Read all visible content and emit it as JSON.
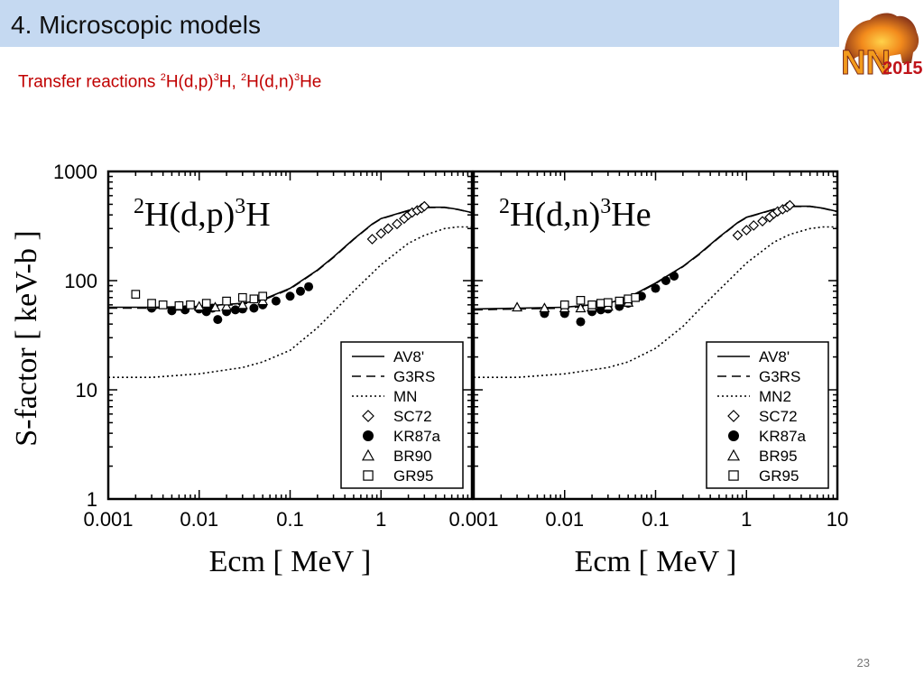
{
  "slide": {
    "title": "4. Microscopic models",
    "subtitle_text": "Transfer reactions",
    "subtitle_parts": [
      "2",
      "H(d,p)",
      "3",
      "H, ",
      "2",
      "H(d,n)",
      "3",
      "He"
    ],
    "page_number": "23"
  },
  "logo": {
    "text_nn": "NN",
    "text_year": "2015"
  },
  "colors": {
    "title_bar": "#c5d9f1",
    "subtitle": "#c00000"
  },
  "chart_data": [
    {
      "type": "line",
      "panel_title": {
        "pre": "2",
        "main": "H(d,p)",
        "sup": "3",
        "post": "H"
      },
      "xlabel": "Ecm [ MeV ]",
      "ylabel": "S-factor [ keV-b ]",
      "xscale": "log",
      "yscale": "log",
      "xlim": [
        0.001,
        10
      ],
      "ylim": [
        1,
        1000
      ],
      "xtick_labels": [
        "0.001",
        "0.01",
        "0.1",
        "1"
      ],
      "ytick_labels": [
        "1",
        "10",
        "100",
        "1000"
      ],
      "legend_placement": "lower-right",
      "series": [
        {
          "name": "AV8'",
          "style": "solid",
          "x": [
            0.001,
            0.003,
            0.01,
            0.03,
            0.05,
            0.1,
            0.2,
            0.3,
            0.5,
            0.8,
            1,
            2,
            3,
            5,
            7,
            10
          ],
          "y": [
            57,
            57,
            58,
            62,
            67,
            85,
            125,
            165,
            240,
            330,
            370,
            440,
            470,
            470,
            450,
            420
          ]
        },
        {
          "name": "G3RS",
          "style": "dashed",
          "x": [
            0.001,
            0.003,
            0.01,
            0.03,
            0.05,
            0.1,
            0.2,
            0.3,
            0.5,
            0.8,
            1,
            2,
            3,
            5,
            7,
            10
          ],
          "y": [
            56,
            56,
            57,
            61,
            66,
            84,
            124,
            163,
            238,
            328,
            368,
            438,
            468,
            468,
            448,
            418
          ]
        },
        {
          "name": "MN",
          "style": "dotted",
          "x": [
            0.001,
            0.003,
            0.01,
            0.03,
            0.05,
            0.1,
            0.2,
            0.3,
            0.5,
            1,
            2,
            3,
            5,
            7,
            10
          ],
          "y": [
            13,
            13,
            14,
            16,
            18,
            23,
            37,
            52,
            80,
            140,
            220,
            260,
            300,
            310,
            310
          ]
        },
        {
          "name": "SC72",
          "marker": "diamond",
          "x": [
            0.8,
            1,
            1.2,
            1.5,
            1.8,
            2,
            2.2,
            2.5,
            2.8,
            3
          ],
          "y": [
            240,
            270,
            300,
            330,
            370,
            400,
            420,
            440,
            460,
            480
          ]
        },
        {
          "name": "KR87a",
          "marker": "filled-circle",
          "x": [
            0.003,
            0.005,
            0.007,
            0.01,
            0.012,
            0.014,
            0.016,
            0.02,
            0.025,
            0.03,
            0.04,
            0.05,
            0.07,
            0.1,
            0.13,
            0.16
          ],
          "y": [
            56,
            53,
            54,
            55,
            52,
            56,
            44,
            52,
            54,
            55,
            56,
            60,
            65,
            72,
            80,
            88
          ]
        },
        {
          "name": "BR90",
          "marker": "triangle",
          "x": [
            0.003,
            0.006,
            0.01,
            0.015,
            0.02,
            0.03,
            0.05
          ],
          "y": [
            60,
            58,
            58,
            57,
            58,
            60,
            65
          ]
        },
        {
          "name": "GR95",
          "marker": "square",
          "x": [
            0.002,
            0.003,
            0.004,
            0.006,
            0.008,
            0.012,
            0.02,
            0.03,
            0.04,
            0.05
          ],
          "y": [
            75,
            62,
            60,
            59,
            60,
            62,
            65,
            70,
            68,
            72
          ]
        }
      ]
    },
    {
      "type": "line",
      "panel_title": {
        "pre": "2",
        "main": "H(d,n)",
        "sup": "3",
        "post": "He"
      },
      "xlabel": "Ecm [ MeV ]",
      "ylabel": "",
      "xscale": "log",
      "yscale": "log",
      "xlim": [
        0.001,
        10
      ],
      "ylim": [
        1,
        1000
      ],
      "xtick_labels": [
        "0.001",
        "0.01",
        "0.1",
        "1",
        "10"
      ],
      "ytick_labels": [],
      "legend_placement": "lower-right",
      "series": [
        {
          "name": "AV8'",
          "style": "solid",
          "x": [
            0.001,
            0.003,
            0.01,
            0.03,
            0.05,
            0.1,
            0.2,
            0.3,
            0.5,
            0.8,
            1,
            2,
            3,
            5,
            7,
            10
          ],
          "y": [
            55,
            56,
            57,
            62,
            70,
            95,
            135,
            175,
            250,
            340,
            380,
            450,
            480,
            480,
            460,
            430
          ]
        },
        {
          "name": "G3RS",
          "style": "dashed",
          "x": [
            0.001,
            0.003,
            0.01,
            0.03,
            0.05,
            0.1,
            0.2,
            0.3,
            0.5,
            0.8,
            1,
            2,
            3,
            5,
            7,
            10
          ],
          "y": [
            54,
            55,
            56,
            61,
            69,
            94,
            134,
            173,
            248,
            338,
            378,
            448,
            478,
            478,
            458,
            428
          ]
        },
        {
          "name": "MN2",
          "style": "dotted",
          "x": [
            0.001,
            0.003,
            0.01,
            0.03,
            0.05,
            0.1,
            0.2,
            0.3,
            0.5,
            1,
            2,
            3,
            5,
            7,
            10
          ],
          "y": [
            13,
            13,
            14,
            16,
            18,
            24,
            38,
            54,
            82,
            145,
            225,
            265,
            300,
            310,
            310
          ]
        },
        {
          "name": "SC72",
          "marker": "diamond",
          "x": [
            0.8,
            1,
            1.2,
            1.5,
            1.8,
            2,
            2.2,
            2.5,
            2.8,
            3
          ],
          "y": [
            260,
            290,
            320,
            350,
            380,
            410,
            430,
            450,
            470,
            490
          ]
        },
        {
          "name": "KR87a",
          "marker": "filled-circle",
          "x": [
            0.006,
            0.01,
            0.015,
            0.02,
            0.025,
            0.03,
            0.04,
            0.05,
            0.07,
            0.1,
            0.13,
            0.16
          ],
          "y": [
            50,
            50,
            42,
            52,
            54,
            55,
            58,
            62,
            72,
            85,
            100,
            110
          ]
        },
        {
          "name": "BR95",
          "marker": "triangle",
          "x": [
            0.003,
            0.006,
            0.01,
            0.015,
            0.02,
            0.03,
            0.05
          ],
          "y": [
            57,
            56,
            56,
            56,
            57,
            58,
            63
          ]
        },
        {
          "name": "GR95",
          "marker": "square",
          "x": [
            0.01,
            0.015,
            0.02,
            0.025,
            0.03,
            0.04,
            0.05,
            0.06
          ],
          "y": [
            60,
            66,
            60,
            62,
            63,
            65,
            68,
            70
          ]
        }
      ]
    }
  ]
}
